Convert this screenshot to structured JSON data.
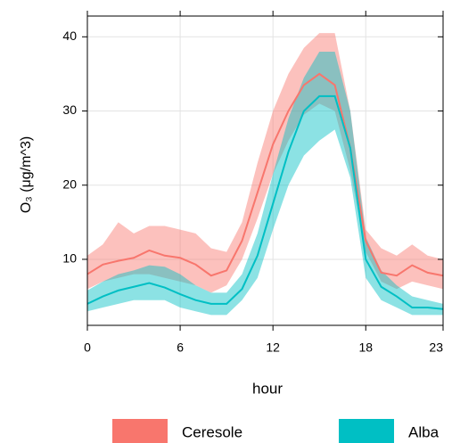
{
  "chart_data": {
    "type": "line-band",
    "xlabel": "hour",
    "ylabel": "O₃ (μg/m^3)",
    "x": [
      0,
      1,
      2,
      3,
      4,
      5,
      6,
      7,
      8,
      9,
      10,
      11,
      12,
      13,
      14,
      15,
      16,
      17,
      18,
      19,
      20,
      21,
      22,
      23
    ],
    "xlim": [
      0,
      23
    ],
    "xticks": [
      0,
      6,
      12,
      18,
      23
    ],
    "ylim": [
      1.1,
      42.8
    ],
    "yticks": [
      10,
      20,
      30,
      40
    ],
    "grid": true,
    "legend": "bottom",
    "series": [
      {
        "name": "Ceresole",
        "color": "#F8766D",
        "values": [
          8,
          9.3,
          9.8,
          10.2,
          11.2,
          10.5,
          10.2,
          9.3,
          7.8,
          8.5,
          12.5,
          19,
          25.5,
          30,
          33.5,
          35,
          33.5,
          25,
          12.5,
          8.2,
          7.8,
          9.2,
          8.2,
          7.8
        ],
        "upper": [
          10.5,
          12,
          15,
          13.5,
          14.5,
          14.5,
          14,
          13.5,
          11.5,
          11,
          15,
          23,
          30,
          35,
          38.5,
          40.5,
          40.5,
          30,
          14,
          11.5,
          10.5,
          12,
          10.5,
          10
        ],
        "lower": [
          6,
          7,
          7.5,
          8,
          8,
          7.5,
          7,
          6.5,
          5.5,
          6.5,
          10,
          15.5,
          21.5,
          26,
          29.5,
          31,
          30,
          22,
          11,
          7,
          6,
          7,
          6.5,
          6
        ]
      },
      {
        "name": "Alba",
        "color": "#00BFC4",
        "values": [
          4,
          5,
          5.8,
          6.3,
          6.8,
          6.2,
          5.3,
          4.5,
          4,
          4,
          6,
          10.5,
          17.5,
          24.5,
          30,
          32,
          32,
          25,
          10,
          6.3,
          5,
          3.5,
          3.5,
          3.3
        ],
        "upper": [
          5.8,
          7,
          8,
          8.5,
          9.2,
          9,
          8,
          6.5,
          5.5,
          5.5,
          8,
          13.5,
          21.5,
          29,
          34.5,
          38,
          38,
          30,
          13,
          8.5,
          6.5,
          5,
          4.5,
          4
        ],
        "lower": [
          3,
          3.5,
          4,
          4.5,
          4.5,
          4.5,
          3.5,
          3,
          2.5,
          2.5,
          4.5,
          7.5,
          14,
          20,
          24,
          26,
          27.5,
          21,
          7.5,
          4.5,
          3.5,
          2.5,
          2.5,
          2.5
        ]
      }
    ]
  }
}
